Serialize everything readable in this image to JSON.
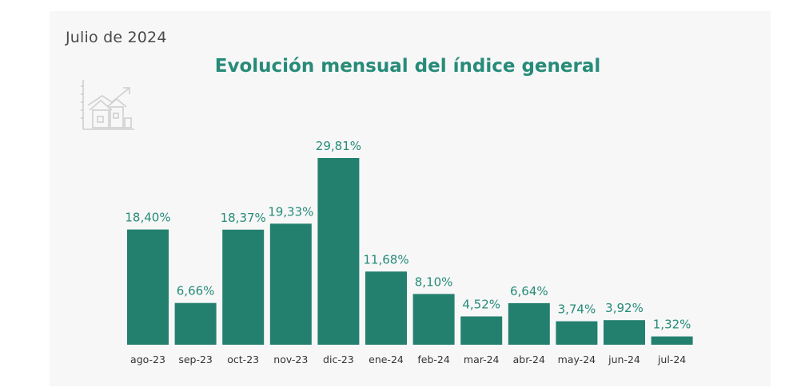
{
  "header": {
    "date": "Julio de 2024",
    "title": "Evolución mensual del índice general"
  },
  "icons": {
    "decoration": "house-growth-chart-icon"
  },
  "colors": {
    "bar": "#23806f",
    "title": "#268b78",
    "value_label": "#268b78"
  },
  "chart_data": {
    "type": "bar",
    "categories": [
      "ago-23",
      "sep-23",
      "oct-23",
      "nov-23",
      "dic-23",
      "ene-24",
      "feb-24",
      "mar-24",
      "abr-24",
      "may-24",
      "jun-24",
      "jul-24"
    ],
    "values": [
      18.4,
      6.66,
      18.37,
      19.33,
      29.81,
      11.68,
      8.1,
      4.52,
      6.64,
      3.74,
      3.92,
      1.32
    ],
    "value_labels": [
      "18,40%",
      "6,66%",
      "18,37%",
      "19,33%",
      "29,81%",
      "11,68%",
      "8,10%",
      "4,52%",
      "6,64%",
      "3,74%",
      "3,92%",
      "1,32%"
    ],
    "title": "Evolución mensual del índice general",
    "xlabel": "",
    "ylabel": "",
    "ylim": [
      0,
      30
    ],
    "grid": false,
    "legend": "none"
  }
}
